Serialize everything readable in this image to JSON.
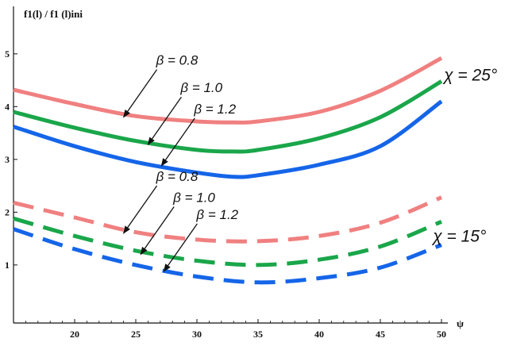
{
  "chart_data": {
    "type": "line",
    "title": "",
    "ylabel": "f1(l) / f1 (l)ini",
    "xlabel": "ψ",
    "xlim": [
      15,
      50
    ],
    "ylim": [
      -0.1,
      5.9
    ],
    "xticks": [
      20,
      25,
      30,
      35,
      40,
      45,
      50
    ],
    "yticks": [
      1,
      2,
      3,
      4,
      5
    ],
    "grid": false,
    "colors": {
      "beta_0_8": "#f08080",
      "beta_1_0": "#1aa64a",
      "beta_1_2": "#1565e8"
    },
    "series": [
      {
        "group": "chi_25",
        "label": "β = 0.8",
        "color": "#f08080",
        "style": "solid",
        "x": [
          15,
          20,
          25,
          30,
          33,
          35,
          40,
          45,
          50
        ],
        "y": [
          4.32,
          4.05,
          3.82,
          3.72,
          3.7,
          3.72,
          3.9,
          4.3,
          4.92
        ]
      },
      {
        "group": "chi_25",
        "label": "β = 1.0",
        "color": "#1aa64a",
        "style": "solid",
        "x": [
          15,
          20,
          25,
          30,
          33,
          35,
          40,
          45,
          50
        ],
        "y": [
          3.9,
          3.6,
          3.35,
          3.18,
          3.15,
          3.18,
          3.4,
          3.8,
          4.48
        ]
      },
      {
        "group": "chi_25",
        "label": "β = 1.2",
        "color": "#1565e8",
        "style": "solid",
        "x": [
          15,
          20,
          25,
          30,
          33,
          35,
          40,
          45,
          50
        ],
        "y": [
          3.62,
          3.25,
          2.95,
          2.75,
          2.67,
          2.7,
          2.9,
          3.25,
          4.1
        ]
      },
      {
        "group": "chi_15",
        "label": "β = 0.8",
        "color": "#f08080",
        "style": "dashed",
        "x": [
          15,
          20,
          25,
          30,
          35,
          40,
          45,
          50
        ],
        "y": [
          2.18,
          1.9,
          1.62,
          1.48,
          1.45,
          1.55,
          1.8,
          2.28
        ]
      },
      {
        "group": "chi_15",
        "label": "β = 1.0",
        "color": "#1aa64a",
        "style": "dashed",
        "x": [
          15,
          20,
          25,
          30,
          35,
          40,
          45,
          50
        ],
        "y": [
          1.88,
          1.55,
          1.27,
          1.08,
          1.0,
          1.1,
          1.35,
          1.82
        ]
      },
      {
        "group": "chi_15",
        "label": "β = 1.2",
        "color": "#1565e8",
        "style": "dashed",
        "x": [
          15,
          20,
          25,
          30,
          35,
          40,
          45,
          50
        ],
        "y": [
          1.68,
          1.3,
          1.0,
          0.78,
          0.67,
          0.75,
          0.95,
          1.38
        ]
      }
    ],
    "annotations": [
      {
        "text": "β = 0.8",
        "tip_x": 24,
        "tip_y": 3.8
      },
      {
        "text": "β = 1.0",
        "tip_x": 26,
        "tip_y": 3.28
      },
      {
        "text": "β = 1.2",
        "tip_x": 27.1,
        "tip_y": 2.88
      },
      {
        "text": "β = 0.8",
        "tip_x": 24,
        "tip_y": 1.6
      },
      {
        "text": "β = 1.0",
        "tip_x": 25.4,
        "tip_y": 1.2
      },
      {
        "text": "β = 1.2",
        "tip_x": 27.3,
        "tip_y": 0.88
      }
    ],
    "group_labels": [
      {
        "text": "χ = 25°",
        "x": 50.2,
        "y": 4.6
      },
      {
        "text": "χ = 15°",
        "x": 49.3,
        "y": 1.55
      }
    ]
  }
}
